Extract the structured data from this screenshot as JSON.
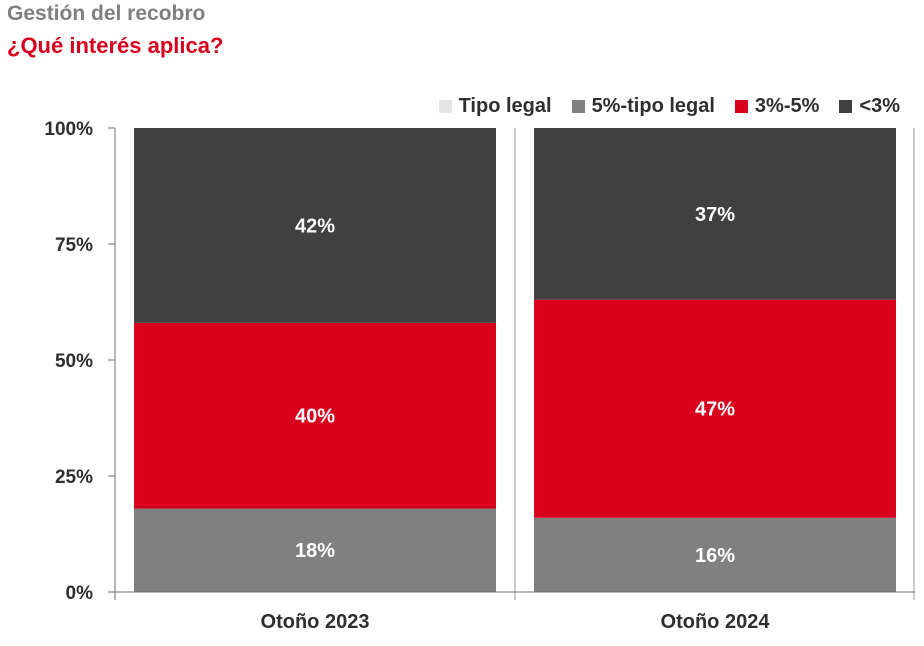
{
  "header": {
    "title": "Gestión del recobro",
    "subtitle": "¿Qué interés aplica?"
  },
  "chart_data": {
    "type": "bar",
    "stacked": true,
    "categories": [
      "Otoño 2023",
      "Otoño 2024"
    ],
    "series": [
      {
        "name": "Tipo legal",
        "values": [
          0,
          0
        ],
        "color": "#e6e6e6"
      },
      {
        "name": "5%-tipo legal",
        "values": [
          18,
          16
        ],
        "color": "#808080"
      },
      {
        "name": "3%-5%",
        "values": [
          40,
          47
        ],
        "color": "#d9001e"
      },
      {
        "name": "<3%",
        "values": [
          42,
          37
        ],
        "color": "#404040"
      }
    ],
    "data_labels": [
      [
        "",
        "18%",
        "40%",
        "42%"
      ],
      [
        "",
        "16%",
        "47%",
        "37%"
      ]
    ],
    "yticks": [
      "0%",
      "25%",
      "50%",
      "75%",
      "100%"
    ],
    "ylim": [
      0,
      100
    ],
    "grid": false,
    "legend_position": "top-right"
  }
}
